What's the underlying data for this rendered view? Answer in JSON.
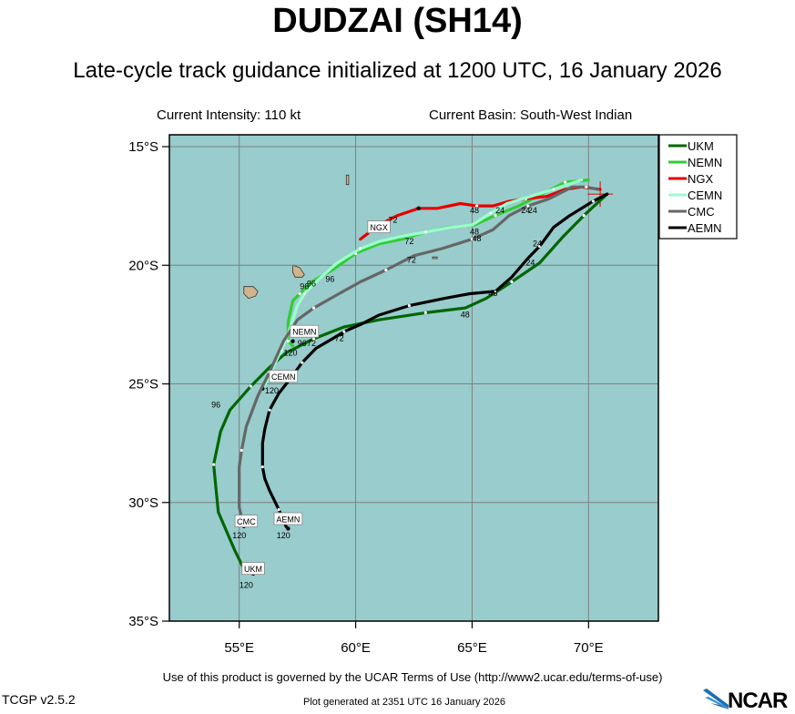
{
  "title": "DUDZAI (SH14)",
  "subtitle": "Late-cycle track guidance initialized at 1200 UTC, 16 January 2026",
  "current_intensity": "Current Intensity: 110 kt",
  "current_basin": "Current Basin: South-West Indian",
  "terms": "Use of this product is governed by the UCAR Terms of Use (http://www2.ucar.edu/terms-of-use)",
  "version": "TCGP v2.5.2",
  "generated": "Plot generated at 2351 UTC   16 January 2026",
  "logo_text": "NCAR",
  "colors": {
    "ocean": "#99cccc",
    "land": "#d2b48c",
    "grid": "#7f7f7f"
  },
  "chart_data": {
    "type": "map",
    "lon_range": [
      52,
      73
    ],
    "lat_range": [
      -35,
      -14.5
    ],
    "lon_ticks": [
      {
        "v": 55,
        "label": "55°E"
      },
      {
        "v": 60,
        "label": "60°E"
      },
      {
        "v": 65,
        "label": "65°E"
      },
      {
        "v": 70,
        "label": "70°E"
      }
    ],
    "lat_ticks": [
      {
        "v": -15,
        "label": "15°S"
      },
      {
        "v": -20,
        "label": "20°S"
      },
      {
        "v": -25,
        "label": "25°S"
      },
      {
        "v": -30,
        "label": "30°S"
      },
      {
        "v": -35,
        "label": "35°S"
      }
    ],
    "legend_position": "top-right",
    "initial_position": [
      70.5,
      -17.0
    ],
    "series": [
      {
        "name": "UKM",
        "color": "#006600",
        "track": [
          [
            70.8,
            -17.0
          ],
          [
            69.8,
            -17.9
          ],
          [
            68.9,
            -18.8
          ],
          [
            67.9,
            -19.9
          ],
          [
            66.7,
            -20.7
          ],
          [
            65.6,
            -21.4
          ],
          [
            64.7,
            -21.8
          ],
          [
            63.0,
            -22.0
          ],
          [
            61.0,
            -22.3
          ],
          [
            59.5,
            -22.6
          ],
          [
            58.2,
            -23.1
          ],
          [
            57.0,
            -23.7
          ],
          [
            56.3,
            -24.3
          ],
          [
            55.5,
            -25.1
          ],
          [
            54.6,
            -26.1
          ],
          [
            54.2,
            -27.0
          ],
          [
            53.9,
            -28.4
          ],
          [
            54.1,
            -30.4
          ],
          [
            54.8,
            -32.0
          ],
          [
            55.2,
            -32.8
          ],
          [
            55.6,
            -33.0
          ]
        ],
        "labels": [
          {
            "t": "24",
            "lon": 67.5,
            "lat": -20.0
          },
          {
            "t": "48",
            "lon": 64.7,
            "lat": -22.2
          },
          {
            "t": "72",
            "lon": 58.1,
            "lat": -23.4
          },
          {
            "t": "96",
            "lon": 54.0,
            "lat": -26.0
          },
          {
            "t": "120",
            "lon": 55.3,
            "lat": -33.6
          }
        ],
        "points": [
          [
            55.6,
            -33.0
          ]
        ],
        "box": {
          "t": "UKM",
          "lon": 55.6,
          "lat": -32.8
        }
      },
      {
        "name": "NEMN",
        "color": "#33cc33",
        "track": [
          [
            70.0,
            -16.4
          ],
          [
            69.0,
            -16.5
          ],
          [
            68.0,
            -17.0
          ],
          [
            67.0,
            -17.5
          ],
          [
            66.0,
            -17.9
          ],
          [
            65.1,
            -18.3
          ],
          [
            64.0,
            -18.4
          ],
          [
            63.0,
            -18.6
          ],
          [
            62.0,
            -18.9
          ],
          [
            61.0,
            -19.1
          ],
          [
            60.0,
            -19.5
          ],
          [
            59.0,
            -20.2
          ],
          [
            58.1,
            -20.7
          ],
          [
            57.6,
            -21.2
          ],
          [
            57.3,
            -21.5
          ],
          [
            57.1,
            -22.4
          ],
          [
            57.1,
            -23.2
          ],
          [
            57.3,
            -23.4
          ]
        ],
        "labels": [
          {
            "t": "24",
            "lon": 67.6,
            "lat": -17.8
          },
          {
            "t": "48",
            "lon": 65.1,
            "lat": -18.7
          },
          {
            "t": "72",
            "lon": 62.3,
            "lat": -19.1
          },
          {
            "t": "96",
            "lon": 57.8,
            "lat": -21.0
          },
          {
            "t": "120",
            "lon": 57.2,
            "lat": -23.8
          }
        ],
        "points": [
          [
            57.3,
            -23.2
          ]
        ],
        "box": {
          "t": "NEMN",
          "lon": 57.8,
          "lat": -22.8
        }
      },
      {
        "name": "NGX",
        "color": "#e60000",
        "track": [
          [
            70.5,
            -16.8
          ],
          [
            69.7,
            -16.7
          ],
          [
            69.0,
            -16.8
          ],
          [
            68.2,
            -17.1
          ],
          [
            67.3,
            -17.2
          ],
          [
            66.6,
            -17.3
          ],
          [
            65.9,
            -17.5
          ],
          [
            65.2,
            -17.5
          ],
          [
            64.5,
            -17.4
          ],
          [
            63.5,
            -17.6
          ],
          [
            62.7,
            -17.6
          ],
          [
            61.8,
            -17.9
          ],
          [
            61.0,
            -18.3
          ],
          [
            60.6,
            -18.6
          ],
          [
            60.2,
            -18.9
          ]
        ],
        "labels": [
          {
            "t": "24",
            "lon": 66.2,
            "lat": -17.8
          },
          {
            "t": "48",
            "lon": 65.1,
            "lat": -17.8
          },
          {
            "t": "72",
            "lon": 61.6,
            "lat": -18.2
          }
        ],
        "points": [
          [
            61.0,
            -18.3
          ],
          [
            62.7,
            -17.6
          ]
        ],
        "box": {
          "t": "NGX",
          "lon": 61.0,
          "lat": -18.4
        }
      },
      {
        "name": "CEMN",
        "color": "#99ffcc",
        "track": [
          [
            69.7,
            -16.4
          ],
          [
            68.5,
            -16.8
          ],
          [
            67.5,
            -17.1
          ],
          [
            66.5,
            -17.4
          ],
          [
            65.8,
            -17.8
          ],
          [
            65.0,
            -18.3
          ],
          [
            64.1,
            -18.4
          ],
          [
            63.0,
            -18.6
          ],
          [
            61.9,
            -18.8
          ],
          [
            61.0,
            -19.0
          ],
          [
            60.2,
            -19.3
          ],
          [
            59.2,
            -19.9
          ],
          [
            58.4,
            -20.6
          ],
          [
            57.8,
            -21.2
          ],
          [
            57.5,
            -21.7
          ],
          [
            57.1,
            -22.9
          ],
          [
            56.8,
            -23.6
          ],
          [
            56.5,
            -24.2
          ],
          [
            56.3,
            -24.7
          ],
          [
            56.0,
            -25.2
          ]
        ],
        "labels": [
          {
            "t": "96",
            "lon": 58.1,
            "lat": -20.9
          },
          {
            "t": "120",
            "lon": 56.4,
            "lat": -25.4
          }
        ],
        "points": [
          [
            56.0,
            -25.2
          ]
        ],
        "box": {
          "t": "CEMN",
          "lon": 56.9,
          "lat": -24.7
        }
      },
      {
        "name": "CMC",
        "color": "#666666",
        "track": [
          [
            70.4,
            -16.8
          ],
          [
            69.9,
            -16.7
          ],
          [
            69.3,
            -16.7
          ],
          [
            68.3,
            -17.2
          ],
          [
            67.4,
            -17.5
          ],
          [
            66.6,
            -17.9
          ],
          [
            65.9,
            -18.5
          ],
          [
            65.0,
            -18.9
          ],
          [
            63.7,
            -19.3
          ],
          [
            62.5,
            -19.6
          ],
          [
            61.3,
            -20.2
          ],
          [
            60.2,
            -20.7
          ],
          [
            59.1,
            -21.3
          ],
          [
            58.2,
            -21.8
          ],
          [
            57.5,
            -22.3
          ],
          [
            56.9,
            -23.2
          ],
          [
            56.3,
            -24.5
          ],
          [
            55.8,
            -25.5
          ],
          [
            55.3,
            -26.8
          ],
          [
            55.1,
            -27.8
          ],
          [
            55.0,
            -28.5
          ],
          [
            55.0,
            -30.2
          ],
          [
            55.2,
            -31.0
          ]
        ],
        "labels": [
          {
            "t": "24",
            "lon": 67.3,
            "lat": -17.8
          },
          {
            "t": "48",
            "lon": 65.2,
            "lat": -19.0
          },
          {
            "t": "72",
            "lon": 62.4,
            "lat": -19.9
          },
          {
            "t": "96",
            "lon": 58.9,
            "lat": -20.7
          },
          {
            "t": "120",
            "lon": 55.0,
            "lat": -31.5
          }
        ],
        "points": [
          [
            55.2,
            -31.0
          ]
        ],
        "box": {
          "t": "CMC",
          "lon": 55.3,
          "lat": -30.8
        }
      },
      {
        "name": "AEMN",
        "color": "#000000",
        "track": [
          [
            70.8,
            -17.0
          ],
          [
            70.2,
            -17.3
          ],
          [
            69.2,
            -17.9
          ],
          [
            68.5,
            -18.4
          ],
          [
            67.9,
            -19.2
          ],
          [
            67.4,
            -19.7
          ],
          [
            66.7,
            -20.5
          ],
          [
            66.0,
            -21.1
          ],
          [
            64.9,
            -21.2
          ],
          [
            63.8,
            -21.4
          ],
          [
            62.3,
            -21.7
          ],
          [
            61.0,
            -22.1
          ],
          [
            60.2,
            -22.5
          ],
          [
            59.5,
            -22.8
          ],
          [
            59.0,
            -23.1
          ],
          [
            58.3,
            -23.5
          ],
          [
            57.7,
            -24.1
          ],
          [
            57.1,
            -24.9
          ],
          [
            56.7,
            -25.4
          ],
          [
            56.3,
            -26.1
          ],
          [
            56.1,
            -26.9
          ],
          [
            56.0,
            -27.5
          ],
          [
            56.0,
            -28.5
          ],
          [
            56.1,
            -29.0
          ],
          [
            56.3,
            -29.5
          ],
          [
            56.7,
            -30.3
          ],
          [
            57.0,
            -31.0
          ],
          [
            57.1,
            -31.1
          ]
        ],
        "labels": [
          {
            "t": "24",
            "lon": 67.8,
            "lat": -19.2
          },
          {
            "t": "48",
            "lon": 65.9,
            "lat": -21.3
          },
          {
            "t": "72",
            "lon": 59.3,
            "lat": -23.2
          },
          {
            "t": "96",
            "lon": 57.7,
            "lat": -23.4
          },
          {
            "t": "120",
            "lon": 56.9,
            "lat": -31.5
          }
        ],
        "points": [
          [
            57.1,
            -31.1
          ],
          [
            59.4,
            -22.9
          ]
        ],
        "box": {
          "t": "AEMN",
          "lon": 57.1,
          "lat": -30.7
        }
      }
    ],
    "land": [
      {
        "name": "mauritius",
        "outline": [
          [
            57.3,
            -20.0
          ],
          [
            57.6,
            -20.1
          ],
          [
            57.8,
            -20.4
          ],
          [
            57.7,
            -20.5
          ],
          [
            57.4,
            -20.5
          ],
          [
            57.3,
            -20.3
          ]
        ]
      },
      {
        "name": "reunion",
        "outline": [
          [
            55.2,
            -20.9
          ],
          [
            55.6,
            -20.9
          ],
          [
            55.8,
            -21.1
          ],
          [
            55.7,
            -21.3
          ],
          [
            55.4,
            -21.4
          ],
          [
            55.2,
            -21.2
          ]
        ]
      },
      {
        "name": "rodrigues",
        "outline": [
          [
            63.3,
            -19.65
          ],
          [
            63.5,
            -19.65
          ],
          [
            63.5,
            -19.72
          ],
          [
            63.3,
            -19.72
          ]
        ]
      },
      {
        "name": "cargados",
        "outline": [
          [
            59.6,
            -16.2
          ],
          [
            59.7,
            -16.2
          ],
          [
            59.7,
            -16.6
          ],
          [
            59.6,
            -16.6
          ]
        ]
      }
    ]
  }
}
